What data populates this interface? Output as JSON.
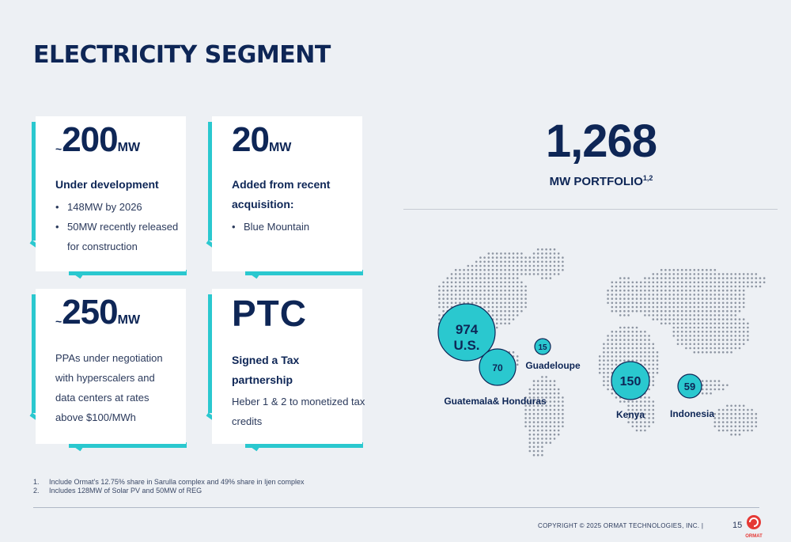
{
  "title": "ELECTRICITY SEGMENT",
  "cards": [
    {
      "prefix": "~",
      "value": "200",
      "unit": "MW",
      "heading": "Under development",
      "bullets": [
        "148MW by 2026",
        "50MW recently released",
        "for construction"
      ]
    },
    {
      "value": "20",
      "unit": "MW",
      "heading_line1": "Added from recent",
      "heading_line2": "acquisition:",
      "bullets": [
        "Blue Mountain"
      ]
    },
    {
      "prefix": "~",
      "value": "250",
      "unit": "MW",
      "body": "PPAs under negotiation with hyperscalers and data centers  at rates above $100/MWh"
    },
    {
      "value": "PTC",
      "heading": "Signed a Tax partnership",
      "body": "Heber 1 & 2 to monetized tax credits"
    }
  ],
  "portfolio": {
    "value": "1,268",
    "label": "MW PORTFOLIO",
    "sup": "1,2"
  },
  "map": {
    "bubbles": [
      {
        "value": "974",
        "sub": "U.S."
      },
      {
        "value": "70"
      },
      {
        "value": "15"
      },
      {
        "value": "150"
      },
      {
        "value": "59"
      }
    ],
    "labels": {
      "guatemala": "Guatemala& Honduras",
      "guadeloupe": "Guadeloupe",
      "kenya": "Kenya",
      "indonesia": "Indonesia"
    }
  },
  "footnotes": [
    {
      "n": "1.",
      "text": "Include Ormat’s 12.75% share in Sarulla complex and 49% share in Ijen complex"
    },
    {
      "n": "2.",
      "text": "Includes 128MW of Solar PV and 50MW of REG"
    }
  ],
  "footer": {
    "copyright": "COPYRIGHT © 2025 ORMAT TECHNOLOGIES, INC.  |",
    "page": "15",
    "logo_text": "ORMAT"
  },
  "colors": {
    "navy": "#0e2656",
    "teal": "#2ac8cf",
    "bubble_stroke": "#0e2656",
    "logo_red": "#e53935",
    "map_dots": "#8e96a3"
  }
}
